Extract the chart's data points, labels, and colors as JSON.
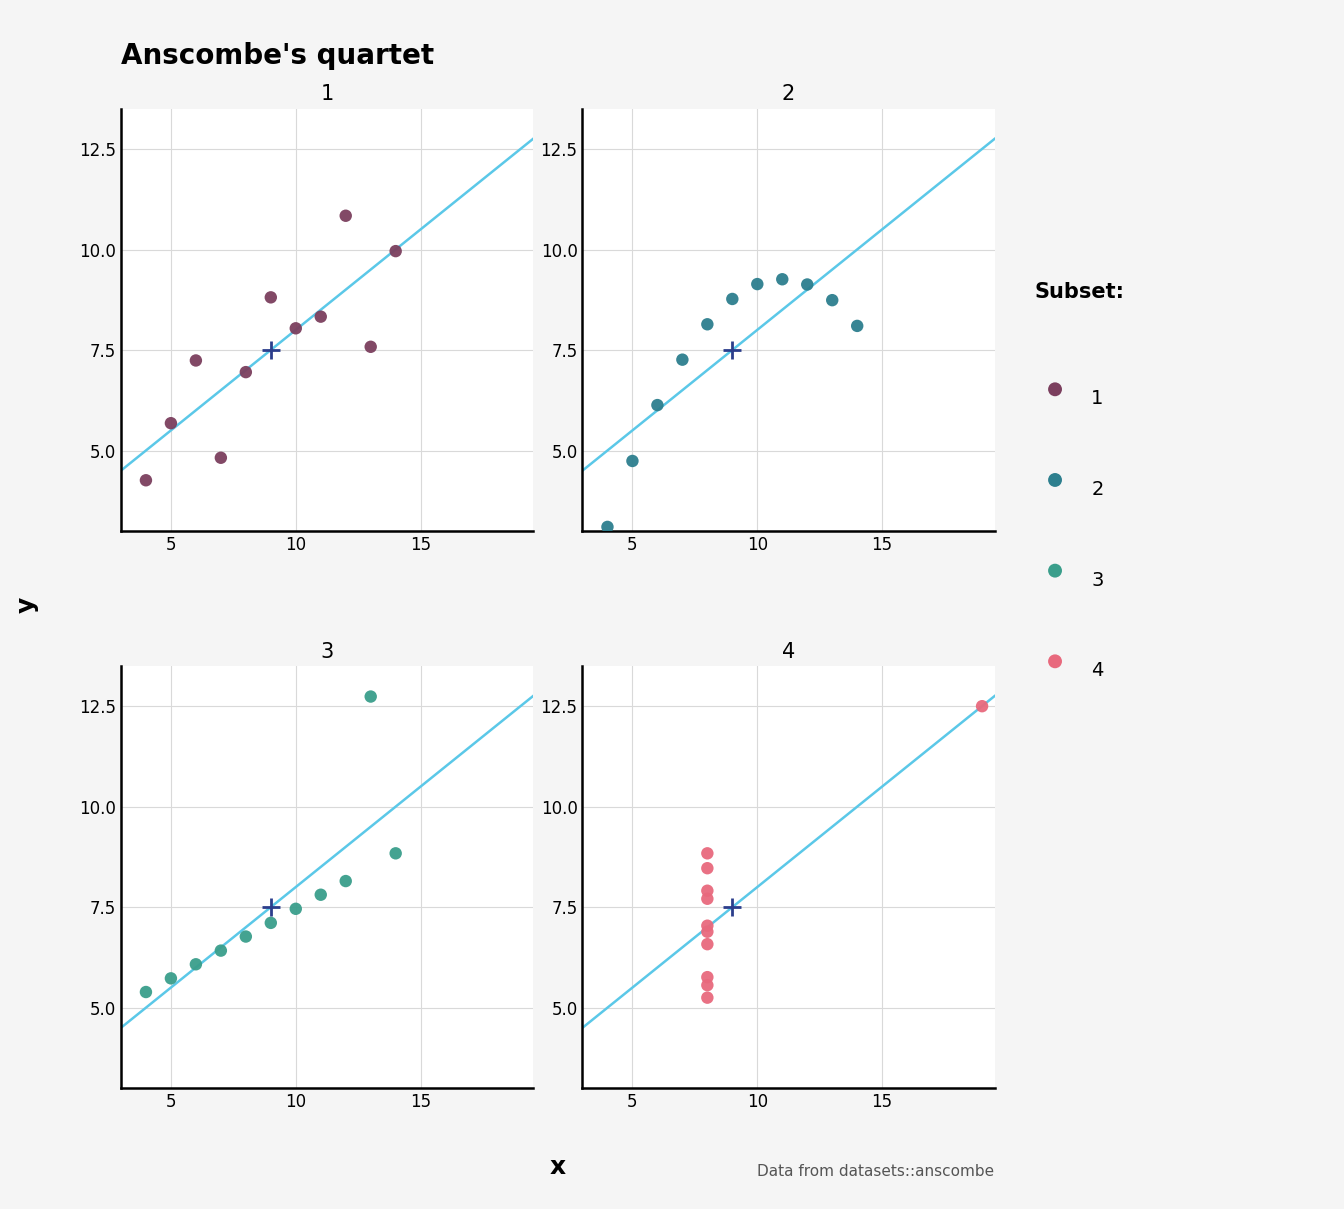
{
  "title": "Anscombe's quartet",
  "xlabel": "x",
  "ylabel": "y",
  "footnote": "Data from datasets::anscombe",
  "subsets": {
    "1": {
      "x": [
        10,
        8,
        13,
        9,
        11,
        14,
        6,
        4,
        12,
        7,
        5
      ],
      "y": [
        8.04,
        6.95,
        7.58,
        8.81,
        8.33,
        9.96,
        7.24,
        4.26,
        10.84,
        4.82,
        5.68
      ],
      "color": "#7b3f5e",
      "mean_x": 9.0,
      "mean_y": 7.500909
    },
    "2": {
      "x": [
        10,
        8,
        13,
        9,
        11,
        14,
        6,
        4,
        12,
        7,
        5
      ],
      "y": [
        9.14,
        8.14,
        8.74,
        8.77,
        9.26,
        8.1,
        6.13,
        3.1,
        9.13,
        7.26,
        4.74
      ],
      "color": "#2d7f8e",
      "mean_x": 9.0,
      "mean_y": 7.500909
    },
    "3": {
      "x": [
        10,
        8,
        13,
        9,
        11,
        14,
        6,
        4,
        12,
        7,
        5
      ],
      "y": [
        7.46,
        6.77,
        12.74,
        7.11,
        7.81,
        8.84,
        6.08,
        5.39,
        8.15,
        6.42,
        5.73
      ],
      "color": "#3a9e8b",
      "mean_x": 9.0,
      "mean_y": 7.5
    },
    "4": {
      "x": [
        8,
        8,
        8,
        8,
        8,
        8,
        8,
        19,
        8,
        8,
        8
      ],
      "y": [
        6.58,
        5.76,
        7.71,
        8.84,
        8.47,
        7.04,
        5.25,
        12.5,
        5.56,
        7.91,
        6.89
      ],
      "color": "#e8697d",
      "mean_x": 9.0,
      "mean_y": 7.500909
    }
  },
  "regression": {
    "slope": 0.5001,
    "intercept": 3.0001
  },
  "ylim": [
    3.0,
    13.5
  ],
  "xlim": [
    3.0,
    19.5
  ],
  "line_color": "#5bc8e8",
  "mean_marker_color": "#2c3e8c",
  "panel_bg_color": "#ffffff",
  "outer_bg_color": "#f5f5f5",
  "grid_color": "#d9d9d9",
  "legend_entries": [
    "1",
    "2",
    "3",
    "4"
  ],
  "legend_colors": [
    "#7b3f5e",
    "#2d7f8e",
    "#3a9e8b",
    "#e8697d"
  ],
  "scatter_size": 80
}
